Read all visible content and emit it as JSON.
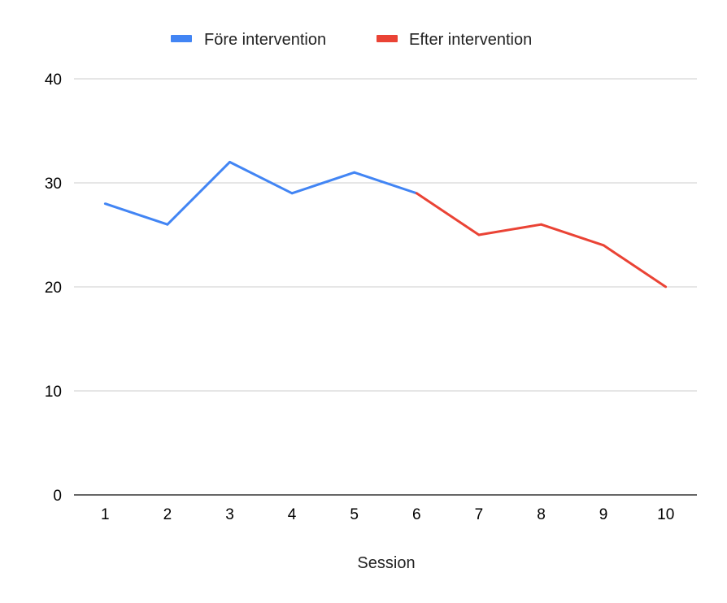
{
  "chart_data": {
    "type": "line",
    "title": "",
    "xlabel": "Session",
    "ylabel": "",
    "categories": [
      "1",
      "2",
      "3",
      "4",
      "5",
      "6",
      "7",
      "8",
      "9",
      "10"
    ],
    "ylim": [
      0,
      40
    ],
    "yticks": [
      0,
      10,
      20,
      30,
      40
    ],
    "grid": true,
    "legend_position": "top-center",
    "series": [
      {
        "name": "Före intervention",
        "color": "#4285f4",
        "x": [
          1,
          2,
          3,
          4,
          5,
          6
        ],
        "values": [
          28,
          26,
          32,
          29,
          31,
          29
        ]
      },
      {
        "name": "Efter intervention",
        "color": "#ea4335",
        "x": [
          6,
          7,
          8,
          9,
          10
        ],
        "values": [
          29,
          25,
          26,
          24,
          20
        ]
      }
    ]
  }
}
